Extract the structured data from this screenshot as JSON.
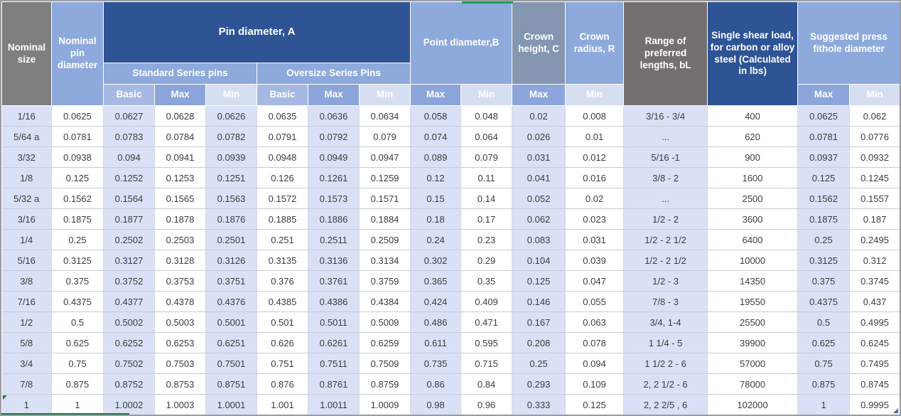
{
  "header": {
    "nominal_size": "Nominal size",
    "nominal_pin_diameter": "Nominal pin diameter",
    "pin_diameter_a": "Pin diameter, A",
    "standard_series": "Standard Series pins",
    "oversize_series": "Oversize Series Pins",
    "point_diameter_b": "Point diameter,B",
    "crown_height_c": "Crown height, C",
    "crown_radius_r": "Crown radius, R",
    "range_lengths": "Range of preferred lengths, bL",
    "single_shear_load": "Single shear load, for carbon or alloy steel (Calculated in lbs)",
    "press_fit": "Suggested press fithole diameter"
  },
  "subheader_row": [
    {
      "label": "Basic",
      "tone": "basic"
    },
    {
      "label": "Max",
      "tone": "max"
    },
    {
      "label": "Min",
      "tone": "min"
    },
    {
      "label": "Basic",
      "tone": "basic"
    },
    {
      "label": "Max",
      "tone": "max"
    },
    {
      "label": "Min",
      "tone": "min"
    },
    {
      "label": "Max",
      "tone": "max"
    },
    {
      "label": "Min",
      "tone": "min"
    },
    {
      "label": "Max",
      "tone": "max"
    },
    {
      "label": "Min",
      "tone": "min"
    },
    {
      "label": "Max",
      "tone": "max"
    },
    {
      "label": "Min",
      "tone": "min"
    }
  ],
  "columns": [
    "nominal_size",
    "nominal_pin_diameter",
    "standard_basic",
    "standard_max",
    "standard_min",
    "oversize_basic",
    "oversize_max",
    "oversize_min",
    "point_max",
    "point_min",
    "crown_height_max",
    "crown_radius_min",
    "range_of_lengths",
    "single_shear_load",
    "press_fit_max",
    "press_fit_min"
  ],
  "rows": [
    [
      "1/16",
      "0.0625",
      "0.0627",
      "0.0628",
      "0.0626",
      "0.0635",
      "0.0636",
      "0.0634",
      "0.058",
      "0.048",
      "0.02",
      "0.008",
      "3/16 - 3/4",
      "400",
      "0.0625",
      "0.062"
    ],
    [
      "5/64 a",
      "0.0781",
      "0.0783",
      "0.0784",
      "0.0782",
      "0.0791",
      "0.0792",
      "0.079",
      "0.074",
      "0.064",
      "0.026",
      "0.01",
      "...",
      "620",
      "0.0781",
      "0.0776"
    ],
    [
      "3/32",
      "0.0938",
      "0.094",
      "0.0941",
      "0.0939",
      "0.0948",
      "0.0949",
      "0.0947",
      "0.089",
      "0.079",
      "0.031",
      "0.012",
      "5/16 -1",
      "900",
      "0.0937",
      "0.0932"
    ],
    [
      "1/8",
      "0.125",
      "0.1252",
      "0.1253",
      "0.1251",
      "0.126",
      "0.1261",
      "0.1259",
      "0.12",
      "0.11",
      "0.041",
      "0.016",
      "3/8 - 2",
      "1600",
      "0.125",
      "0.1245"
    ],
    [
      "5/32 a",
      "0.1562",
      "0.1564",
      "0.1565",
      "0.1563",
      "0.1572",
      "0.1573",
      "0.1571",
      "0.15",
      "0.14",
      "0.052",
      "0.02",
      "...",
      "2500",
      "0.1562",
      "0.1557"
    ],
    [
      "3/16",
      "0.1875",
      "0.1877",
      "0.1878",
      "0.1876",
      "0.1885",
      "0.1886",
      "0.1884",
      "0.18",
      "0.17",
      "0.062",
      "0.023",
      "1/2 - 2",
      "3600",
      "0.1875",
      "0.187"
    ],
    [
      "1/4",
      "0.25",
      "0.2502",
      "0.2503",
      "0.2501",
      "0.251",
      "0.2511",
      "0.2509",
      "0.24",
      "0.23",
      "0.083",
      "0.031",
      "1/2 - 2 1/2",
      "6400",
      "0.25",
      "0.2495"
    ],
    [
      "5/16",
      "0.3125",
      "0.3127",
      "0.3128",
      "0.3126",
      "0.3135",
      "0.3136",
      "0.3134",
      "0.302",
      "0.29",
      "0.104",
      "0.039",
      "1/2 - 2 1/2",
      "10000",
      "0.3125",
      "0.312"
    ],
    [
      "3/8",
      "0.375",
      "0.3752",
      "0.3753",
      "0.3751",
      "0.376",
      "0.3761",
      "0.3759",
      "0.365",
      "0.35",
      "0.125",
      "0.047",
      "1/2 - 3",
      "14350",
      "0.375",
      "0.3745"
    ],
    [
      "7/16",
      "0.4375",
      "0.4377",
      "0.4378",
      "0.4376",
      "0.4385",
      "0.4386",
      "0.4384",
      "0.424",
      "0.409",
      "0.146",
      "0.055",
      "7/8 - 3",
      "19550",
      "0.4375",
      "0.437"
    ],
    [
      "1/2",
      "0.5",
      "0.5002",
      "0.5003",
      "0.5001",
      "0.501",
      "0.5011",
      "0.5009",
      "0.486",
      "0.471",
      "0.167",
      "0.063",
      "3/4, 1-4",
      "25500",
      "0.5",
      "0.4995"
    ],
    [
      "5/8",
      "0.625",
      "0.6252",
      "0.6253",
      "0.6251",
      "0.626",
      "0.6261",
      "0.6259",
      "0.611",
      "0.595",
      "0.208",
      "0.078",
      "1 1/4 - 5",
      "39900",
      "0.625",
      "0.6245"
    ],
    [
      "3/4",
      "0.75",
      "0.7502",
      "0.7503",
      "0.7501",
      "0.751",
      "0.7511",
      "0.7509",
      "0.735",
      "0.715",
      "0.25",
      "0.094",
      "1 1/2 2 - 6",
      "57000",
      "0.75",
      "0.7495"
    ],
    [
      "7/8",
      "0.875",
      "0.8752",
      "0.8753",
      "0.8751",
      "0.876",
      "0.8761",
      "0.8759",
      "0.86",
      "0.84",
      "0.293",
      "0.109",
      "2, 2 1/2 - 6",
      "78000",
      "0.875",
      "0.8745"
    ],
    [
      "1",
      "1",
      "1.0002",
      "1.0003",
      "1.0001",
      "1.001",
      "1.0011",
      "1.0009",
      "0.98",
      "0.96",
      "0.333",
      "0.125",
      "2, 2 2/5 , 6",
      "102000",
      "1",
      "0.9995"
    ]
  ],
  "colors": {
    "header_dark_blue": "#2E5496",
    "header_mid_blue": "#8EA9DC",
    "header_gray_blue": "#8496B0",
    "header_gray": "#7F7F7F",
    "header_range_gray": "#757070",
    "subheader_basic": "#A6B9E2",
    "subheader_max": "#8CA5DA",
    "subheader_min": "#D6DEF1",
    "row_stripe_blue": "#DAE1F6",
    "marker_green": "#21A05C",
    "marker_dark_green": "#217346",
    "marker_blue": "#44689D"
  }
}
